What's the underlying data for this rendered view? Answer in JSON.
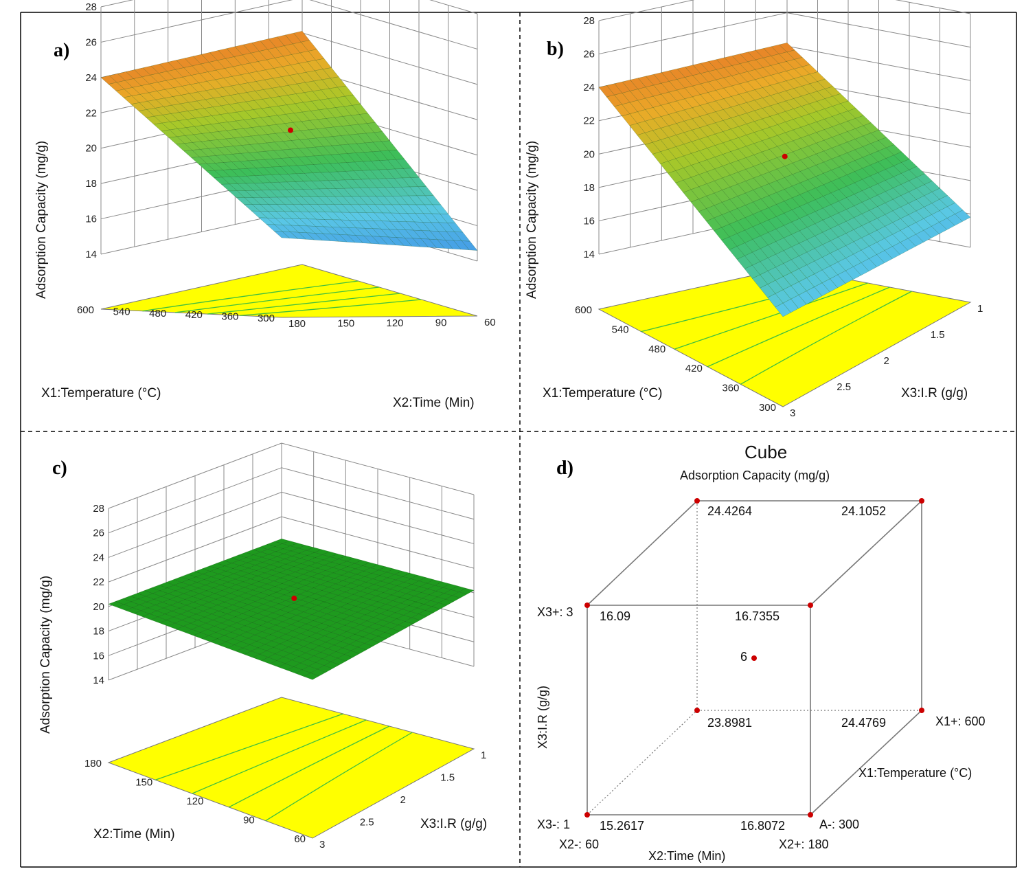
{
  "colors": {
    "floor": "#ffff00",
    "contour": "#3fbf3f",
    "grid": "#888888",
    "point": "#cc0000",
    "flat": "#1e9a1e"
  },
  "chart_data": [
    {
      "panel": "a)",
      "type": "surface3d",
      "xlabel": "X1:Temperature (°C)",
      "ylabel": "X2:Time (Min)",
      "zlabel": "Adsorption Capacity (mg/g)",
      "x_ticks": [
        "600",
        "540",
        "480",
        "420",
        "360",
        "300"
      ],
      "y_ticks": [
        "180",
        "150",
        "120",
        "90",
        "60"
      ],
      "z_ticks": [
        "14",
        "16",
        "18",
        "20",
        "22",
        "24",
        "26",
        "28"
      ],
      "corners": {
        "x600_y180": 24.0,
        "x600_y60": 24.1,
        "x300_y180": 15.4,
        "x300_y60": 14.6
      },
      "center_point": 20.6
    },
    {
      "panel": "b)",
      "type": "surface3d",
      "xlabel": "X1:Temperature (°C)",
      "ylabel": "X3:I.R (g/g)",
      "zlabel": "Adsorption Capacity (mg/g)",
      "x_ticks": [
        "600",
        "540",
        "480",
        "420",
        "360",
        "300"
      ],
      "y_ticks": [
        "3",
        "2.5",
        "2",
        "1.5",
        "1"
      ],
      "z_ticks": [
        "14",
        "16",
        "18",
        "20",
        "22",
        "24",
        "26",
        "28"
      ],
      "corners": {
        "x600_y3": 24.0,
        "x600_y1": 24.2,
        "x300_y3": 16.1,
        "x300_y1": 15.8
      },
      "center_point": 20.6
    },
    {
      "panel": "c)",
      "type": "surface3d",
      "xlabel": "X2:Time (Min)",
      "ylabel": "X3:I.R (g/g)",
      "zlabel": "Adsorption Capacity (mg/g)",
      "x_ticks": [
        "180",
        "150",
        "120",
        "90",
        "60"
      ],
      "y_ticks": [
        "3",
        "2.5",
        "2",
        "1.5",
        "1"
      ],
      "z_ticks": [
        "14",
        "16",
        "18",
        "20",
        "22",
        "24",
        "26",
        "28"
      ],
      "corners": {
        "all": 20.2
      },
      "center_point": 20.6
    },
    {
      "panel": "d)",
      "type": "cube",
      "title": "Cube",
      "subtitle": "Adsorption Capacity (mg/g)",
      "values": {
        "x1low_x2low_x3low": "15.2617",
        "x1low_x2high_x3low": "16.8072",
        "x1low_x2low_x3high": "16.09",
        "x1low_x2high_x3high": "16.7355",
        "x1high_x2low_x3low": "23.8981",
        "x1high_x2high_x3low": "24.4769",
        "x1high_x2low_x3high": "24.4264",
        "x1high_x2high_x3high": "24.1052"
      },
      "center_label": "6",
      "labels": {
        "x3_plus": "X3+: 3",
        "x3_minus": "X3-: 1",
        "x3_axis": "X3:I.R (g/g)",
        "x2_minus": "X2-: 60",
        "x2_plus": "X2+: 180",
        "x2_axis": "X2:Time (Min)",
        "x1_plus": "X1+: 600",
        "x1_minus": "A-: 300",
        "x1_axis": "X1:Temperature (°C)"
      }
    }
  ]
}
